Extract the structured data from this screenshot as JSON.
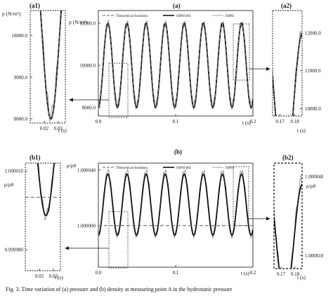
{
  "caption": "Fig. 3. Time variation of (a) pressure and (b) density at measuring point A in the hydrostatic pressure",
  "legend_items": [
    "Theoretical Solution",
    "ISPH-HS",
    "ISPH"
  ],
  "colors": {
    "theory": "#666666",
    "isph_hs": "#111111",
    "isph": "#8a8a8a"
  },
  "chart_data": [
    {
      "id": "a",
      "panel_label": "(a)",
      "type": "line",
      "ylabel": "p (N/m²)",
      "xlabel": "t (s)",
      "xlim": [
        0,
        0.2
      ],
      "ylim": [
        7600,
        12600
      ],
      "xticks": [
        "0.0",
        "0.1",
        "0.2"
      ],
      "xtick_values": [
        0,
        0.1,
        0.2
      ],
      "yticks": [
        "8000.0",
        "10000.0",
        "12000.0"
      ],
      "ytick_values": [
        8000,
        10000,
        12000
      ],
      "series": [
        {
          "name": "Theoretical Solution",
          "style": "dashed",
          "mean": 10000,
          "amp": 2000,
          "period": 0.0247
        },
        {
          "name": "ISPH-HS",
          "style": "solid-thick",
          "mean": 10000,
          "amp": 2000,
          "period": 0.0247
        },
        {
          "name": "ISPH",
          "style": "solid-thin",
          "mean": 10050,
          "amp": 1950,
          "period": 0.0247,
          "noise": 180
        }
      ],
      "zoom_boxes": [
        {
          "x": [
            0.008,
            0.03
          ],
          "y": [
            7700,
            10500
          ]
        },
        {
          "x": [
            0.16,
            0.178
          ],
          "y": [
            10900,
            12500
          ]
        }
      ]
    },
    {
      "id": "a1",
      "panel_label": "(a1)",
      "type": "line",
      "xlabel": "t (s)",
      "xlim": [
        0.01,
        0.035
      ],
      "ylim": [
        7900,
        10600
      ],
      "xticks": [
        "0.02",
        "0.03"
      ],
      "xtick_values": [
        0.02,
        0.03
      ],
      "yticks": [
        "8000.0",
        "9000.0",
        "10000.0"
      ],
      "ytick_values": [
        8000,
        9000,
        10000
      ]
    },
    {
      "id": "a2",
      "panel_label": "(a2)",
      "type": "line",
      "xlabel": "t (s)",
      "xlim": [
        0.165,
        0.185
      ],
      "ylim": [
        9800,
        12600
      ],
      "xticks": [
        "0.17",
        "0.18"
      ],
      "xtick_values": [
        0.17,
        0.18
      ],
      "yticks": [
        "10000.0",
        "11000.0",
        "12000.0"
      ],
      "ytick_values": [
        10000,
        11000,
        12000
      ]
    },
    {
      "id": "b",
      "panel_label": "(b)",
      "type": "line",
      "ylabel": "ρ/ρ0",
      "xlabel": "t (s)",
      "xlim": [
        0,
        0.2
      ],
      "ylim": [
        0.99997,
        1.000045
      ],
      "xticks": [
        "0.0",
        "0.1",
        "0.2"
      ],
      "xtick_values": [
        0,
        0.1,
        0.2
      ],
      "yticks": [
        "1.000000",
        "1.000040"
      ],
      "ytick_values": [
        1.0,
        1.00004
      ],
      "series": [
        {
          "name": "Theoretical Solution",
          "style": "dashed",
          "constant": 1.0
        },
        {
          "name": "ISPH-HS",
          "style": "solid-thick",
          "mean": 1.000015,
          "amp": 2.2e-05,
          "period": 0.0247
        },
        {
          "name": "ISPH",
          "style": "solid-thin",
          "mean": 1.000016,
          "amp": 2.3e-05,
          "period": 0.0247,
          "noise": 2e-06
        }
      ],
      "zoom_boxes": [
        {
          "x": [
            0.008,
            0.03
          ],
          "y": [
            0.999972,
            1.00001
          ]
        },
        {
          "x": [
            0.16,
            0.178
          ],
          "y": [
            1.000015,
            1.000045
          ]
        }
      ]
    },
    {
      "id": "b1",
      "panel_label": "(b1)",
      "ylabel": "ρ/ρ0",
      "type": "line",
      "xlabel": "t (s)",
      "xlim": [
        0.01,
        0.035
      ],
      "ylim": [
        0.999972,
        1.000013
      ],
      "xticks": [
        "0.02",
        "0.03"
      ],
      "xtick_values": [
        0.02,
        0.03
      ],
      "yticks": [
        "1.000010",
        "0.999980"
      ],
      "ytick_values": [
        1.00001,
        0.99998
      ]
    },
    {
      "id": "b2",
      "panel_label": "(b2)",
      "ylabel": "ρ/ρ0",
      "type": "line",
      "xlabel": "t (s)",
      "xlim": [
        0.165,
        0.185
      ],
      "ylim": [
        1.000005,
        1.000045
      ],
      "xticks": [
        "0.17",
        "0.18"
      ],
      "xtick_values": [
        0.17,
        0.18
      ],
      "yticks": [
        "1.000040",
        "1.000010"
      ],
      "ytick_values": [
        1.00004,
        1.00001
      ]
    }
  ]
}
